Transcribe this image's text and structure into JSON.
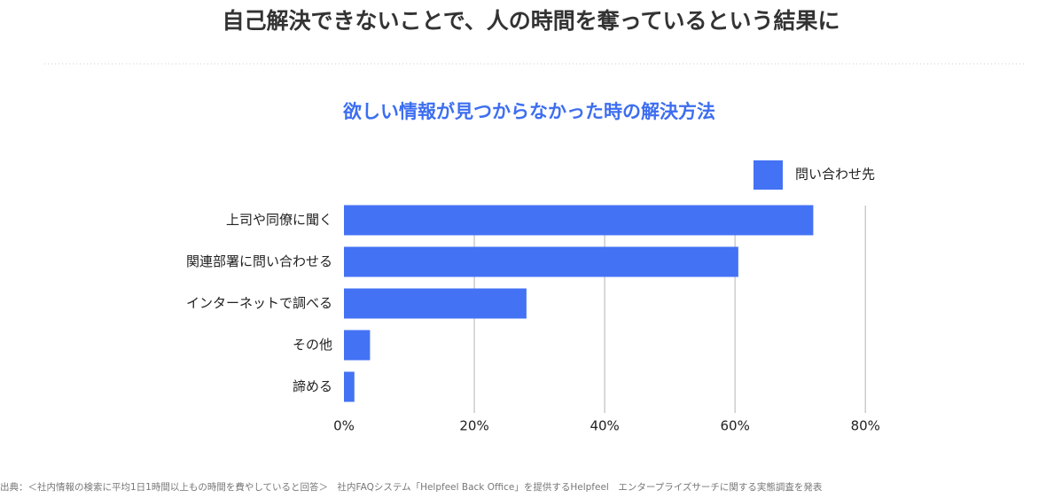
{
  "header": {
    "title": "自己解決できないことで、人の時間を奪っているという結果に"
  },
  "chart_data": {
    "type": "hbar",
    "title": "欲しい情報が見つからなかった時の解決方法",
    "categories": [
      "上司や同僚に聞く",
      "関連部署に問い合わせる",
      "インターネットで調べる",
      "その他",
      "諦める"
    ],
    "series": [
      {
        "name": "問い合わせ先",
        "color": "#4472f4",
        "values": [
          72,
          60.5,
          28,
          4,
          1.6
        ]
      }
    ],
    "xlim": [
      0,
      85
    ],
    "xticks": [
      {
        "value": 0,
        "label": "0%"
      },
      {
        "value": 20,
        "label": "20%"
      },
      {
        "value": 40,
        "label": "40%"
      },
      {
        "value": 60,
        "label": "60%"
      },
      {
        "value": 80,
        "label": "80%"
      }
    ],
    "grid": true,
    "legend": "top-right"
  },
  "footer": {
    "text": "出典：＜社内情報の検索に平均1日1時間以上もの時間を費やしていると回答＞　社内FAQシステム「Helpfeel Back Office」を提供するHelpfeel　エンタープライズサーチに関する実態調査を発表"
  }
}
